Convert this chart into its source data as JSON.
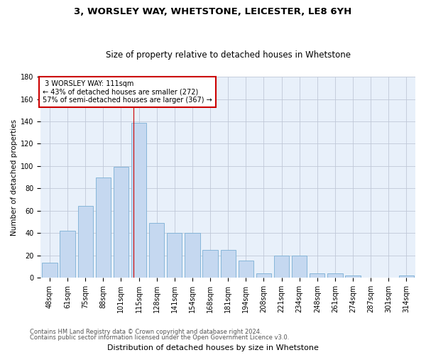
{
  "title1": "3, WORSLEY WAY, WHETSTONE, LEICESTER, LE8 6YH",
  "title2": "Size of property relative to detached houses in Whetstone",
  "xlabel": "Distribution of detached houses by size in Whetstone",
  "ylabel": "Number of detached properties",
  "categories": [
    "48sqm",
    "61sqm",
    "75sqm",
    "88sqm",
    "101sqm",
    "115sqm",
    "128sqm",
    "141sqm",
    "154sqm",
    "168sqm",
    "181sqm",
    "194sqm",
    "208sqm",
    "221sqm",
    "234sqm",
    "248sqm",
    "261sqm",
    "274sqm",
    "287sqm",
    "301sqm",
    "314sqm"
  ],
  "values": [
    13,
    42,
    64,
    90,
    99,
    139,
    49,
    40,
    40,
    25,
    25,
    15,
    4,
    20,
    20,
    4,
    4,
    2,
    0,
    0,
    2
  ],
  "bar_color": "#c5d8f0",
  "bar_edge_color": "#7bafd4",
  "property_label": "3 WORSLEY WAY: 111sqm",
  "pct_smaller": 43,
  "count_smaller": 272,
  "pct_larger": 57,
  "count_larger": 367,
  "annotation_box_color": "#ffffff",
  "annotation_box_edge": "#cc0000",
  "ylim": [
    0,
    180
  ],
  "yticks": [
    0,
    20,
    40,
    60,
    80,
    100,
    120,
    140,
    160,
    180
  ],
  "vline_x_index": 4.71,
  "bg_color": "#ffffff",
  "plot_bg_color": "#e8f0fa",
  "grid_color": "#c0c8d8",
  "title1_fontsize": 9.5,
  "title2_fontsize": 8.5,
  "xlabel_fontsize": 8,
  "ylabel_fontsize": 7.5,
  "tick_fontsize": 7,
  "annotation_fontsize": 7,
  "footer1": "Contains HM Land Registry data © Crown copyright and database right 2024.",
  "footer2": "Contains public sector information licensed under the Open Government Licence v3.0.",
  "footer_fontsize": 6
}
